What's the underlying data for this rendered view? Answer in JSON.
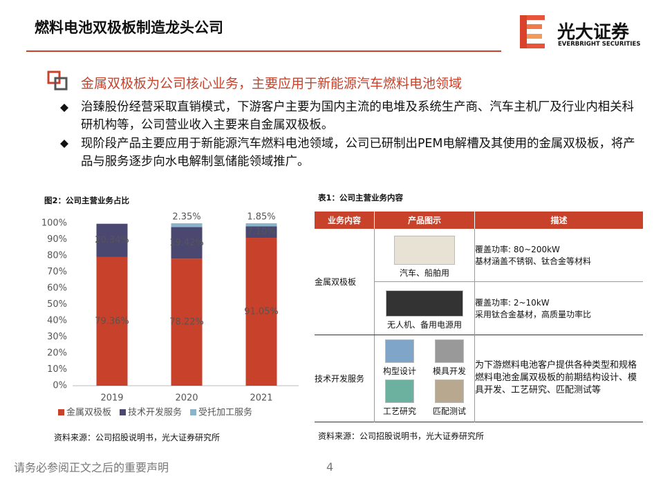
{
  "header": {
    "title": "燃料电池双极板制造龙头公司",
    "logo_name": "光大证券",
    "logo_english": "EVERBRIGHT SECURITIES"
  },
  "section": {
    "heading": "金属双极板为公司核心业务，主要应用于新能源汽车燃料电池领域",
    "bullets": [
      "治臻股份经营采取直销模式，下游客户主要为国内主流的电堆及系统生产商、汽车主机厂及行业内相关科研机构等，公司营业收入主要来自金属双极板。",
      "现阶段产品主要应用于新能源汽车燃料电池领域，公司已研制出PEM电解槽及其使用的金属双极板，将产品与服务逐步向水电解制氢储能领域推广。"
    ]
  },
  "chart_data": {
    "type": "bar",
    "stacked": true,
    "title": "图2：公司主营业务占比",
    "categories": [
      "2019",
      "2020",
      "2021"
    ],
    "series": [
      {
        "name": "金属双极板",
        "color": "#c8412a",
        "values": [
          79.36,
          78.22,
          91.05
        ],
        "value_labels": [
          "79.36%",
          "78.22%",
          "91.05%"
        ]
      },
      {
        "name": "技术开发服务",
        "color": "#4a4870",
        "values": [
          20.34,
          19.42,
          7.1
        ],
        "value_labels": [
          "20.34%",
          "19.42%",
          "7.10%"
        ]
      },
      {
        "name": "受托加工服务",
        "color": "#8ab4cc",
        "values": [
          null,
          2.35,
          1.85
        ],
        "value_labels": [
          null,
          "2.35%",
          "1.85%"
        ]
      }
    ],
    "ylim": [
      0,
      100
    ],
    "yticks": [
      {
        "value": 0,
        "label": "0%"
      },
      {
        "value": 10,
        "label": "10%"
      },
      {
        "value": 20,
        "label": "20%"
      },
      {
        "value": 30,
        "label": "30%"
      },
      {
        "value": 40,
        "label": "40%"
      },
      {
        "value": 50,
        "label": "50%"
      },
      {
        "value": 60,
        "label": "60%"
      },
      {
        "value": 70,
        "label": "70%"
      },
      {
        "value": 80,
        "label": "80%"
      },
      {
        "value": 90,
        "label": "90%"
      },
      {
        "value": 100,
        "label": "100%"
      }
    ],
    "grid": false,
    "legend": "bottom",
    "source": "资料来源：公司招股说明书，光大证券研究所"
  },
  "table": {
    "title": "表1：公司主营业务内容",
    "headers": [
      "业务内容",
      "产品图示",
      "描述"
    ],
    "rows": [
      {
        "business": "金属双极板",
        "items": [
          {
            "caption": "汽车、船舶用",
            "description": [
              "覆盖功率: 80~200kW",
              "基材涵盖不锈钢、钛合金等材料"
            ]
          },
          {
            "caption": "无人机、备用电源用",
            "description": [
              "覆盖功率: 2~10kW",
              "采用钛合金基材，高质量功率比"
            ]
          }
        ]
      },
      {
        "business": "技术开发服务",
        "items": [
          {
            "captions": [
              "构型设计",
              "模具开发",
              "工艺研究",
              "匹配测试"
            ],
            "description": [
              "为下游燃料电池客户提供各种类型和规格燃料电池金属双极板的前期结构设计、模具开发、工艺研究、匹配测试等"
            ]
          }
        ]
      }
    ],
    "source": "资料来源：公司招股说明书，光大证券研究所"
  },
  "footer": {
    "disclaimer": "请务必参阅正文之后的重要声明",
    "page": "4"
  }
}
